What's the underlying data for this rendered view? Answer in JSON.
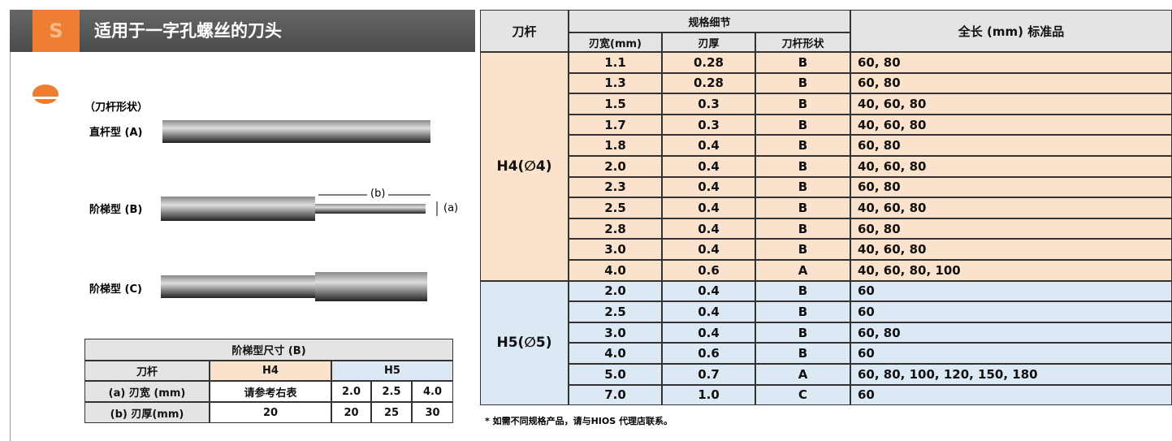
{
  "header": {
    "badge": "S",
    "title": "适用于一字孔螺丝的刀头"
  },
  "shapes": {
    "heading": "（刀杆形状）",
    "items": [
      "直杆型 (A)",
      "阶梯型 (B)",
      "阶梯型 (C)"
    ],
    "dim_b": "(b)",
    "dim_a": "(a)"
  },
  "size_table": {
    "title": "阶梯型尺寸 (B)",
    "header": [
      "刀杆",
      "H4",
      "H5"
    ],
    "rows": [
      [
        "(a) 刃宽 (mm)",
        "请参考右表",
        "2.0",
        "2.5",
        "4.0"
      ],
      [
        "(b) 刃厚(mm)",
        "20",
        "20",
        "25",
        "30"
      ]
    ]
  },
  "spec_table": {
    "header": {
      "shank": "刀杆",
      "details": "规格细节",
      "width": "刃宽(mm)",
      "thickness": "刃厚",
      "shape": "刀杆形状",
      "length": "全长 (mm) 标准品"
    },
    "groups": [
      {
        "label": "H4(∅4)",
        "rows": [
          [
            "1.1",
            "0.28",
            "B",
            "60, 80"
          ],
          [
            "1.3",
            "0.28",
            "B",
            "60, 80"
          ],
          [
            "1.5",
            "0.3",
            "B",
            "40, 60, 80"
          ],
          [
            "1.7",
            "0.3",
            "B",
            "40, 60, 80"
          ],
          [
            "1.8",
            "0.4",
            "B",
            "60, 80"
          ],
          [
            "2.0",
            "0.4",
            "B",
            "40, 60, 80"
          ],
          [
            "2.3",
            "0.4",
            "B",
            "60, 80"
          ],
          [
            "2.5",
            "0.4",
            "B",
            "40, 60, 80"
          ],
          [
            "2.8",
            "0.4",
            "B",
            "60, 80"
          ],
          [
            "3.0",
            "0.4",
            "B",
            "40, 60, 80"
          ],
          [
            "4.0",
            "0.6",
            "A",
            "40, 60, 80, 100"
          ]
        ]
      },
      {
        "label": "H5(∅5)",
        "rows": [
          [
            "2.0",
            "0.4",
            "B",
            "60"
          ],
          [
            "2.5",
            "0.4",
            "B",
            "60"
          ],
          [
            "3.0",
            "0.4",
            "B",
            "60, 80"
          ],
          [
            "4.0",
            "0.6",
            "B",
            "60"
          ],
          [
            "5.0",
            "0.7",
            "A",
            "60, 80, 100, 120, 150, 180"
          ],
          [
            "7.0",
            "1.0",
            "C",
            "60"
          ]
        ]
      }
    ],
    "footnote": "* 如需不同规格产品，请与HIOS 代理店联系。"
  }
}
